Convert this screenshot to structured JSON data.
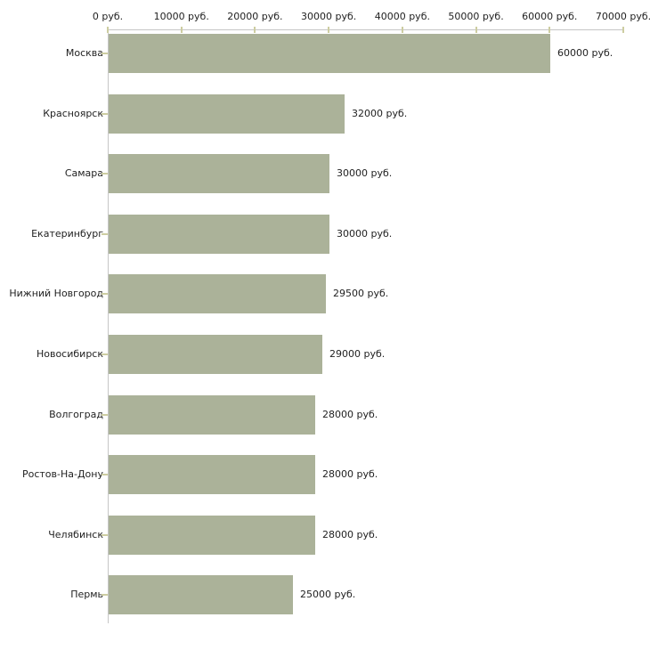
{
  "chart_data": {
    "type": "bar",
    "orientation": "horizontal",
    "title": "",
    "categories": [
      "Москва",
      "Красноярск",
      "Самара",
      "Екатеринбург",
      "Нижний Новгород",
      "Новосибирск",
      "Волгоград",
      "Ростов-На-Дону",
      "Челябинск",
      "Пермь"
    ],
    "values": [
      60000,
      32000,
      30000,
      30000,
      29500,
      29000,
      28000,
      28000,
      28000,
      25000
    ],
    "value_labels": [
      "60000 руб.",
      "32000 руб.",
      "30000 руб.",
      "30000 руб.",
      "29500 руб.",
      "29000 руб.",
      "28000 руб.",
      "28000 руб.",
      "28000 руб.",
      "25000 руб."
    ],
    "unit": "руб.",
    "xlim": [
      0,
      70000
    ],
    "x_tick_step": 10000,
    "x_tick_labels": [
      "0 руб.",
      "10000 руб.",
      "20000 руб.",
      "30000 руб.",
      "40000 руб.",
      "50000 руб.",
      "60000 руб.",
      "70000 руб."
    ],
    "xlabel": "",
    "ylabel": "",
    "grid": "off",
    "legend": "none",
    "colors": {
      "bar": "#abb299",
      "axis_line": "#c6c6c6",
      "tick": "#cdcda1",
      "text": "#222222",
      "background": "#ffffff"
    }
  }
}
